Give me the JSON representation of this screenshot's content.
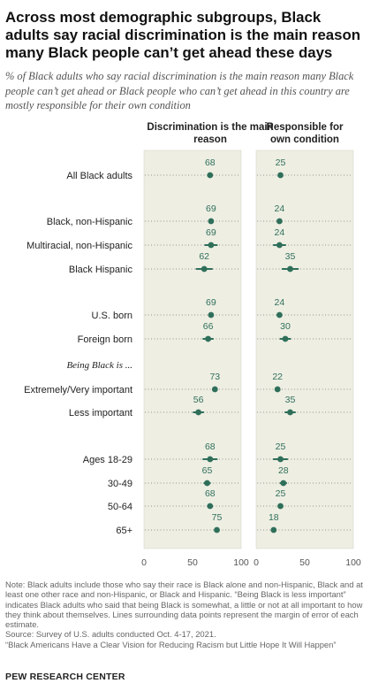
{
  "title": "Across most demographic subgroups, Black adults say racial discrimination is the main reason many Black people can’t get ahead these days",
  "subtitle": "% of Black adults who say racial discrimination is the main reason many Black people can’t get ahead or Black people who can’t get ahead in this country are mostly responsible for their own condition",
  "colors": {
    "panel_bg": "#eeeee3",
    "dot": "#2f6f5a",
    "label": "#2f6f5a",
    "grid_dot": "#777777"
  },
  "chart_data": {
    "type": "dot-plot",
    "xlim": [
      0,
      100
    ],
    "ticks": [
      0,
      50,
      100
    ],
    "panels": [
      {
        "name": "Discrimination is the main reason"
      },
      {
        "name": "Responsible for own condition"
      }
    ],
    "rows": [
      {
        "label": "All Black adults",
        "italic": false,
        "values": [
          68,
          25
        ],
        "moe": [
          0,
          0
        ]
      },
      {
        "label": "Black, non-Hispanic",
        "italic": false,
        "values": [
          69,
          24
        ],
        "moe": [
          0,
          0
        ]
      },
      {
        "label": "Multiracial, non-Hispanic",
        "italic": false,
        "values": [
          69,
          24
        ],
        "moe": [
          6,
          6
        ]
      },
      {
        "label": "Black Hispanic",
        "italic": false,
        "values": [
          62,
          35
        ],
        "moe": [
          8,
          8
        ]
      },
      {
        "label": "U.S. born",
        "italic": false,
        "values": [
          69,
          24
        ],
        "moe": [
          0,
          0
        ]
      },
      {
        "label": "Foreign born",
        "italic": false,
        "values": [
          66,
          30
        ],
        "moe": [
          5,
          5
        ]
      },
      {
        "label": "Being Black is ...",
        "italic": true,
        "values": null,
        "moe": null
      },
      {
        "label": "Extremely/Very important",
        "italic": false,
        "values": [
          73,
          22
        ],
        "moe": [
          0,
          0
        ]
      },
      {
        "label": "Less important",
        "italic": false,
        "values": [
          56,
          35
        ],
        "moe": [
          5,
          5
        ]
      },
      {
        "label": "Ages 18-29",
        "italic": false,
        "values": [
          68,
          25
        ],
        "moe": [
          7,
          7
        ]
      },
      {
        "label": "30-49",
        "italic": false,
        "values": [
          65,
          28
        ],
        "moe": [
          3,
          3
        ]
      },
      {
        "label": "50-64",
        "italic": false,
        "values": [
          68,
          25
        ],
        "moe": [
          2,
          2
        ]
      },
      {
        "label": "65+",
        "italic": false,
        "values": [
          75,
          18
        ],
        "moe": [
          0,
          0
        ]
      }
    ]
  },
  "notes": {
    "note": "Note: Black adults include those who say their race is Black alone and non-Hispanic, Black and at least one other race and non-Hispanic, or Black and Hispanic. “Being Black is less important” indicates Black adults who said that being Black is somewhat, a little or not at all important to how they think about themselves. Lines surrounding data points represent the margin of error of each estimate.",
    "source": "Source: Survey of U.S. adults conducted Oct. 4-17, 2021.",
    "report": "“Black Americans Have a Clear Vision for Reducing Racism but Little Hope It Will Happen”"
  },
  "brand": "PEW RESEARCH CENTER"
}
